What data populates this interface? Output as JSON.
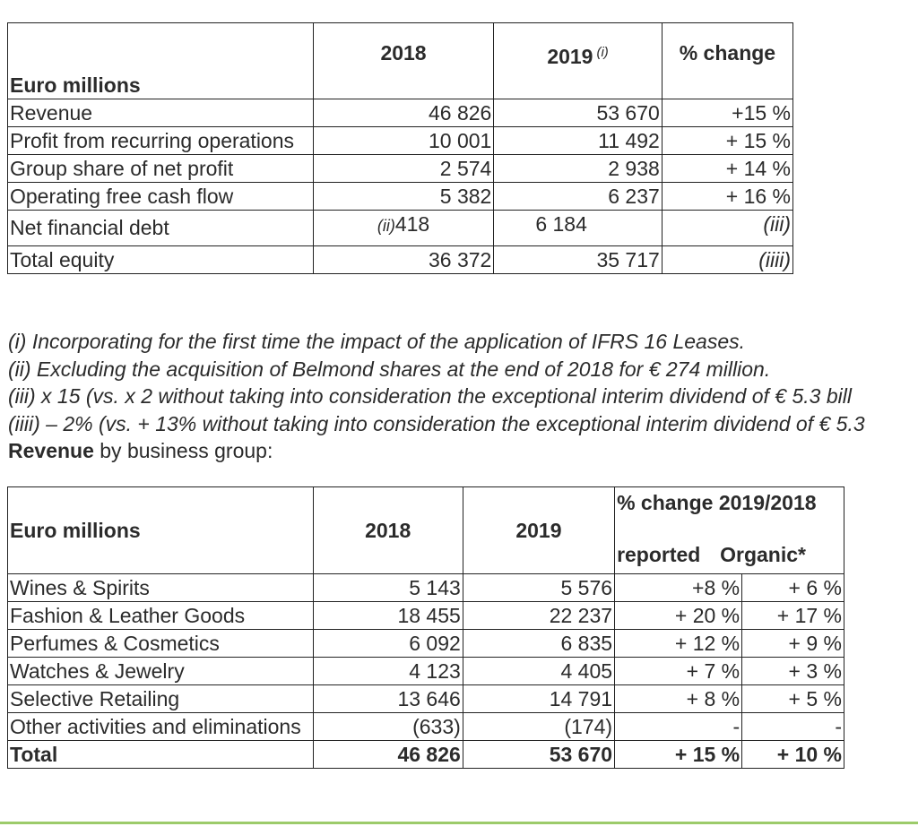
{
  "table1": {
    "header": {
      "label": "Euro millions",
      "col_2018": "2018",
      "col_2019": "2019",
      "col_2019_note": "(i)",
      "col_change": "% change"
    },
    "rows": [
      {
        "label": "Revenue",
        "v2018": "46 826",
        "v2019": "53 670",
        "change": "+15 %"
      },
      {
        "label": "Profit from recurring operations",
        "v2018": "10 001",
        "v2019": "11 492",
        "change": "+ 15 %"
      },
      {
        "label": "Group share of net profit",
        "v2018": "2 574",
        "v2019": "2 938",
        "change": "+ 14 %"
      },
      {
        "label": "Operating free cash flow",
        "v2018": "5 382",
        "v2019": "6 237",
        "change": "+ 16 %"
      },
      {
        "label": "Net financial debt",
        "v2018_note": "(ii)",
        "v2018": "418",
        "v2019": "6 184",
        "change": "(iii)"
      },
      {
        "label": "Total equity",
        "v2018": "36 372",
        "v2019": "35 717",
        "change": "(iiii)"
      }
    ]
  },
  "notes": [
    "(i) Incorporating for the first time the impact of the application of IFRS 16 Leases.",
    "(ii) Excluding the acquisition of Belmond shares at the end of 2018 for € 274 million.",
    "(iii) x 15 (vs. x 2 without taking into consideration the exceptional interim dividend of € 5.3 bill",
    "(iiii) – 2% (vs. + 13% without taking into consideration the exceptional interim dividend of € 5.3"
  ],
  "revenue_caption": {
    "bold": "Revenue",
    "rest": " by business group:"
  },
  "table2": {
    "header": {
      "label": "Euro millions",
      "col_2018": "2018",
      "col_2019": "2019",
      "col_change": "% change 2019/2018",
      "sub_reported": "reported",
      "sub_organic": "Organic*"
    },
    "rows": [
      {
        "label": "Wines & Spirits",
        "v2018": "5 143",
        "v2019": "5 576",
        "reported": "+8 %",
        "organic": "+ 6 %"
      },
      {
        "label": "Fashion & Leather Goods",
        "v2018": "18 455",
        "v2019": "22 237",
        "reported": "+ 20 %",
        "organic": "+ 17 %"
      },
      {
        "label": "Perfumes & Cosmetics",
        "v2018": "6 092",
        "v2019": "6 835",
        "reported": "+ 12 %",
        "organic": "+ 9 %"
      },
      {
        "label": "Watches & Jewelry",
        "v2018": "4 123",
        "v2019": "4 405",
        "reported": "+ 7 %",
        "organic": "+ 3 %"
      },
      {
        "label": "Selective Retailing",
        "v2018": "13 646",
        "v2019": "14 791",
        "reported": "+ 8 %",
        "organic": "+ 5 %"
      },
      {
        "label": "Other activities and eliminations",
        "v2018": "(633)",
        "v2019": "(174)",
        "reported": "-",
        "organic": "-"
      },
      {
        "label": "Total",
        "v2018": "46 826",
        "v2019": "53 670",
        "reported": "+ 15 %",
        "organic": "+ 10 %"
      }
    ]
  }
}
